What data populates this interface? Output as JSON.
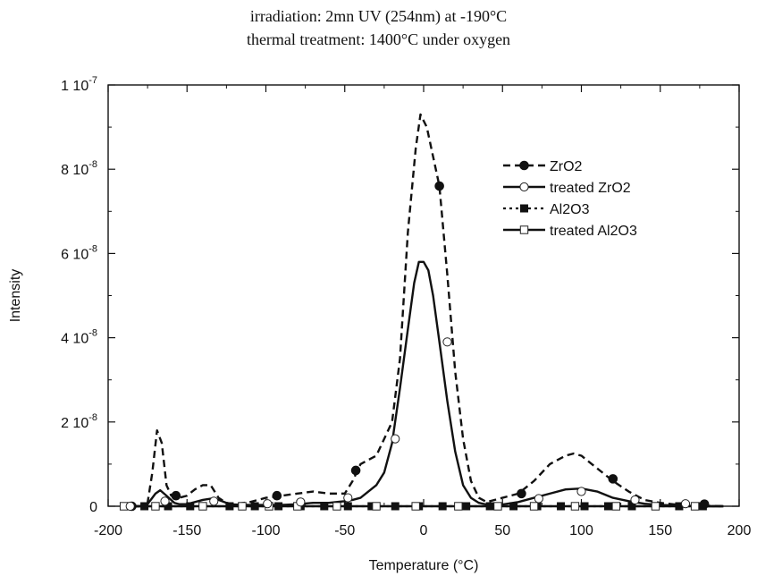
{
  "chart_data": {
    "type": "line",
    "title_lines": [
      "irradiation: 2mn UV (254nm) at -190°C",
      "thermal treatment: 1400°C under oxygen"
    ],
    "xlabel": "Temperature (°C)",
    "ylabel": "Intensity",
    "xlim": [
      -200,
      200
    ],
    "ylim": [
      0,
      1e-07
    ],
    "x_ticks": [
      -200,
      -150,
      -100,
      -50,
      0,
      50,
      100,
      150,
      200
    ],
    "y_ticks": [
      {
        "value": 0,
        "mantissa": "0",
        "exponent": ""
      },
      {
        "value": 2e-08,
        "mantissa": "2 10",
        "exponent": "-8"
      },
      {
        "value": 4e-08,
        "mantissa": "4 10",
        "exponent": "-8"
      },
      {
        "value": 6e-08,
        "mantissa": "6 10",
        "exponent": "-8"
      },
      {
        "value": 8e-08,
        "mantissa": "8 10",
        "exponent": "-8"
      },
      {
        "value": 1e-07,
        "mantissa": "1 10",
        "exponent": "-7"
      }
    ],
    "grid": false,
    "legend_position": "top-right",
    "series": [
      {
        "name": "ZrO2",
        "line": "dashed",
        "marker": "filled-circle",
        "legend_text_color": "#555555",
        "x": [
          -190,
          -180,
          -175,
          -172,
          -169,
          -166,
          -163,
          -160,
          -155,
          -150,
          -145,
          -140,
          -135,
          -130,
          -125,
          -120,
          -110,
          -100,
          -90,
          -80,
          -70,
          -60,
          -50,
          -45,
          -40,
          -30,
          -20,
          -15,
          -10,
          -5,
          -2,
          2,
          6,
          10,
          15,
          20,
          25,
          30,
          35,
          40,
          50,
          60,
          70,
          80,
          90,
          95,
          100,
          110,
          120,
          130,
          140,
          150,
          160,
          170,
          180,
          190
        ],
        "y": [
          0,
          0,
          8e-10,
          8e-09,
          1.8e-08,
          1.5e-08,
          5e-09,
          2.5e-09,
          2e-09,
          2.5e-09,
          4e-09,
          5e-09,
          5e-09,
          2e-09,
          8e-10,
          5e-10,
          1e-09,
          2e-09,
          2.5e-09,
          3e-09,
          3.5e-09,
          3e-09,
          3e-09,
          6e-09,
          1e-08,
          1.2e-08,
          2e-08,
          3.5e-08,
          6.5e-08,
          8.5e-08,
          9.3e-08,
          9e-08,
          8.3e-08,
          7.6e-08,
          5.5e-08,
          3.2e-08,
          1.6e-08,
          6e-09,
          2e-09,
          1e-09,
          2e-09,
          3e-09,
          6e-09,
          1e-08,
          1.2e-08,
          1.25e-08,
          1.2e-08,
          9e-09,
          6e-09,
          3.5e-09,
          1.5e-09,
          8e-10,
          4e-10,
          2e-10,
          1e-10,
          0
        ],
        "marker_x": [
          -185,
          -157,
          -93,
          -43,
          10,
          62,
          120,
          178
        ],
        "marker_y": [
          0,
          2.5e-09,
          2.5e-09,
          8.5e-09,
          7.6e-08,
          3e-09,
          6.5e-09,
          5e-10
        ]
      },
      {
        "name": "treated ZrO2",
        "line": "solid",
        "marker": "open-circle",
        "legend_text_color": "#111111",
        "x": [
          -190,
          -180,
          -175,
          -170,
          -167,
          -163,
          -158,
          -155,
          -150,
          -145,
          -140,
          -135,
          -130,
          -125,
          -120,
          -110,
          -100,
          -90,
          -80,
          -70,
          -60,
          -50,
          -45,
          -40,
          -30,
          -25,
          -20,
          -15,
          -10,
          -6,
          -3,
          0,
          3,
          6,
          10,
          15,
          20,
          25,
          30,
          35,
          40,
          50,
          60,
          70,
          80,
          90,
          100,
          110,
          120,
          130,
          140,
          150,
          160,
          170,
          180,
          190
        ],
        "y": [
          0,
          0,
          5e-10,
          3e-09,
          3.8e-09,
          2.5e-09,
          8e-10,
          5e-10,
          5e-10,
          1e-09,
          1.5e-09,
          1.8e-09,
          1.5e-09,
          8e-10,
          4e-10,
          3e-10,
          3e-10,
          3e-10,
          5e-10,
          8e-10,
          8e-10,
          1.2e-09,
          1.5e-09,
          2e-09,
          5e-09,
          8e-09,
          1.5e-08,
          2.8e-08,
          4.2e-08,
          5.3e-08,
          5.8e-08,
          5.8e-08,
          5.6e-08,
          5e-08,
          3.9e-08,
          2.5e-08,
          1.3e-08,
          5e-09,
          2e-09,
          8e-10,
          4e-10,
          4e-10,
          1e-09,
          2e-09,
          3e-09,
          4e-09,
          4.2e-09,
          3.5e-09,
          2e-09,
          1.2e-09,
          6e-10,
          3e-10,
          2e-10,
          1e-10,
          0,
          0
        ],
        "marker_x": [
          -186,
          -164,
          -133,
          -99,
          -78,
          -48,
          -18,
          15,
          73,
          100,
          134,
          166
        ],
        "marker_y": [
          0,
          1.2e-09,
          1.2e-09,
          6e-10,
          1e-09,
          2e-09,
          1.6e-08,
          3.9e-08,
          1.8e-09,
          3.5e-09,
          1.5e-09,
          6e-10
        ]
      },
      {
        "name": "Al2O3",
        "line": "dotted",
        "marker": "filled-square",
        "legend_text_color": "#555555",
        "x": [
          -190,
          -150,
          -100,
          -50,
          0,
          50,
          100,
          150,
          190
        ],
        "y": [
          0,
          0,
          0,
          0,
          0,
          0,
          0,
          0,
          0
        ],
        "marker_x": [
          -187,
          -177,
          -162,
          -148,
          -123,
          -107,
          -92,
          -78,
          -63,
          -48,
          -33,
          -18,
          -3,
          12,
          27,
          42,
          57,
          72,
          87,
          102,
          117,
          132,
          147,
          162,
          177
        ],
        "marker_y": [
          0,
          0,
          0,
          0,
          0,
          0,
          0,
          0,
          0,
          0,
          0,
          0,
          0,
          0,
          0,
          0,
          0,
          0,
          0,
          0,
          0,
          0,
          0,
          0,
          0
        ]
      },
      {
        "name": "treated Al2O3",
        "line": "solid",
        "marker": "open-square",
        "legend_text_color": "#111111",
        "x": [
          -190,
          -150,
          -100,
          -50,
          0,
          50,
          100,
          150,
          190
        ],
        "y": [
          0,
          0,
          0,
          0,
          0,
          0,
          0,
          0,
          0
        ],
        "marker_x": [
          -190,
          -170,
          -140,
          -115,
          -98,
          -80,
          -55,
          -30,
          -5,
          22,
          47,
          70,
          96,
          122,
          147,
          172
        ],
        "marker_y": [
          0,
          0,
          0,
          0,
          0,
          0,
          0,
          0,
          0,
          0,
          0,
          0,
          0,
          0,
          0,
          0
        ]
      }
    ]
  }
}
